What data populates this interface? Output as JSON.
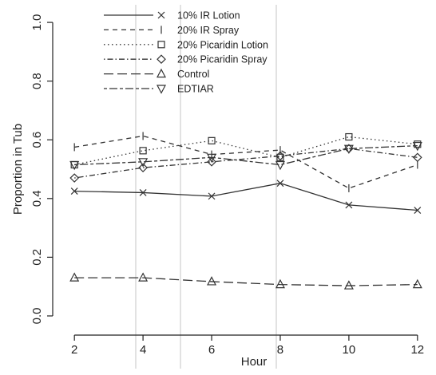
{
  "chart_data": {
    "type": "line",
    "title": "",
    "xlabel": "Hour",
    "ylabel": "Proportion in Tub",
    "x": [
      2,
      4,
      6,
      8,
      10,
      12
    ],
    "xlim": [
      1.6,
      12.4
    ],
    "ylim": [
      -0.03,
      1.06
    ],
    "x_ticks": [
      2,
      4,
      6,
      8,
      10,
      12
    ],
    "y_ticks": [
      0.0,
      0.2,
      0.4,
      0.6,
      0.8,
      1.0
    ],
    "x_tick_labels": [
      "2",
      "4",
      "6",
      "8",
      "10",
      "12"
    ],
    "y_tick_labels": [
      "0.0",
      "0.2",
      "0.4",
      "0.6",
      "0.8",
      "1.0"
    ],
    "grid": false,
    "legend_position": "top-left",
    "series": [
      {
        "name": "10% IR Lotion",
        "dash": "solid",
        "marker": "x",
        "values": [
          0.425,
          0.42,
          0.408,
          0.452,
          0.378,
          0.36
        ]
      },
      {
        "name": "20% IR Spray",
        "dash": "dashed",
        "marker": "bar",
        "values": [
          0.575,
          0.613,
          0.55,
          0.565,
          0.435,
          0.515
        ]
      },
      {
        "name": "20% Picaridin Lotion",
        "dash": "dotted",
        "marker": "square",
        "values": [
          0.515,
          0.563,
          0.597,
          0.54,
          0.61,
          0.585
        ]
      },
      {
        "name": "20% Picaridin Spray",
        "dash": "dashdot",
        "marker": "diamond",
        "values": [
          0.47,
          0.505,
          0.525,
          0.545,
          0.57,
          0.54
        ]
      },
      {
        "name": "Control",
        "dash": "longdash",
        "marker": "triangle-up",
        "values": [
          0.13,
          0.13,
          0.117,
          0.107,
          0.103,
          0.107
        ]
      },
      {
        "name": "EDTIAR",
        "dash": "twodash",
        "marker": "triangle-down",
        "values": [
          0.515,
          0.525,
          0.54,
          0.515,
          0.57,
          0.58
        ]
      }
    ]
  }
}
